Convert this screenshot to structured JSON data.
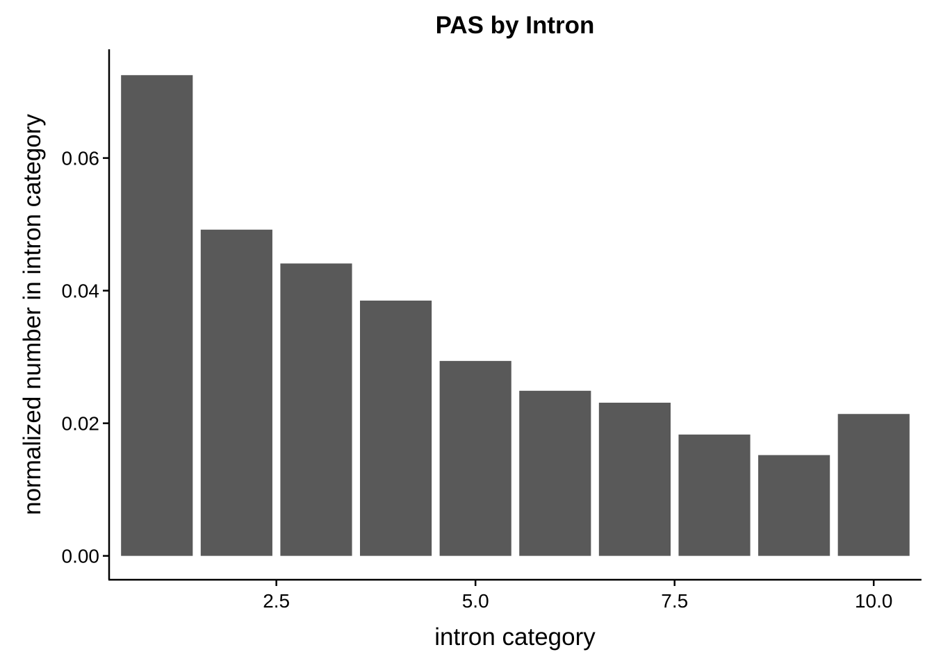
{
  "chart_data": {
    "type": "bar",
    "title": "PAS by Intron",
    "xlabel": "intron category",
    "ylabel": "normalized number in intron category",
    "x": [
      1,
      2,
      3,
      4,
      5,
      6,
      7,
      8,
      9,
      10
    ],
    "values": [
      0.0725,
      0.0492,
      0.0441,
      0.0385,
      0.0294,
      0.0249,
      0.0231,
      0.0183,
      0.0152,
      0.0214
    ],
    "xlim": [
      0.4,
      10.6
    ],
    "ylim": [
      -0.0036,
      0.0764
    ],
    "x_ticks": [
      2.5,
      5.0,
      7.5,
      10.0
    ],
    "x_tick_labels": [
      "2.5",
      "5.0",
      "7.5",
      "10.0"
    ],
    "y_ticks": [
      0.0,
      0.02,
      0.04,
      0.06
    ],
    "y_tick_labels": [
      "0.00",
      "0.02",
      "0.04",
      "0.06"
    ],
    "bar_color": "#595959",
    "axis_color": "#000000",
    "grid": false,
    "legend": "none"
  }
}
